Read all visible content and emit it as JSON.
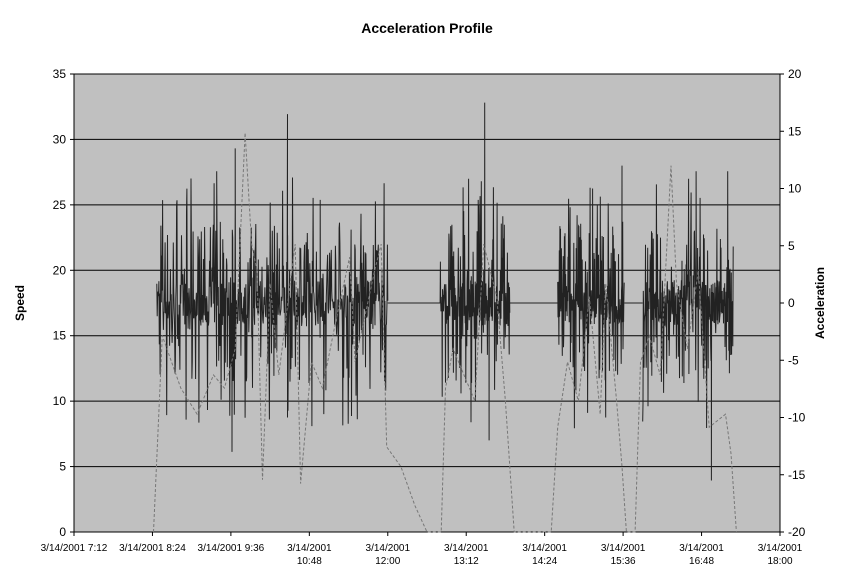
{
  "chart_data": {
    "type": "line",
    "title": "Acceleration Profile",
    "y_left_label": "Speed",
    "y_right_label": "Acceleration",
    "y_left_lim": [
      0,
      35
    ],
    "y_left_ticks": [
      "0",
      "5",
      "10",
      "15",
      "20",
      "25",
      "30",
      "35"
    ],
    "y_right_lim": [
      -20,
      20
    ],
    "y_right_ticks": [
      "-20",
      "-15",
      "-10",
      "-5",
      "0",
      "5",
      "10",
      "15",
      "20"
    ],
    "x_ticks": [
      [
        "3/14/2001 7:12"
      ],
      [
        "3/14/2001 8:24"
      ],
      [
        "3/14/2001 9:36"
      ],
      [
        "3/14/2001",
        "10:48"
      ],
      [
        "3/14/2001",
        "12:00"
      ],
      [
        "3/14/2001",
        "13:12"
      ],
      [
        "3/14/2001",
        "14:24"
      ],
      [
        "3/14/2001",
        "15:36"
      ],
      [
        "3/14/2001",
        "16:48"
      ],
      [
        "3/14/2001",
        "18:00"
      ]
    ],
    "x_range": [
      "3/14/2001 7:12",
      "3/14/2001 18:00"
    ],
    "grid": true,
    "plot_background": "#c0c0c0",
    "series": [
      {
        "axis": "right",
        "style": "solid",
        "color": "#222222",
        "segments": [
          {
            "start": "8:28",
            "end": "12:00",
            "n": 560,
            "spikes": [
              [
                "9:23",
                11.5
              ],
              [
                "9:40",
                13.5
              ],
              [
                "10:28",
                16.5
              ],
              [
                "10:58",
                9
              ],
              [
                "10:28",
                -10
              ]
            ],
            "min_spike": [
              "9:37",
              -13
            ]
          },
          {
            "start": "12:48",
            "end": "13:52",
            "n": 230,
            "spikes": [
              [
                "13:29",
                17.5
              ],
              [
                "13:23",
                9
              ]
            ],
            "min_spike": [
              "13:33",
              -12
            ]
          },
          {
            "start": "14:36",
            "end": "15:37",
            "n": 220,
            "spikes": [
              [
                "15:08",
                10
              ],
              [
                "15:35",
                12
              ]
            ],
            "min_spike": [
              "15:20",
              -10
            ]
          },
          {
            "start": "15:54",
            "end": "17:17",
            "n": 290,
            "spikes": [
              [
                "16:43",
                11.5
              ],
              [
                "17:12",
                11.5
              ]
            ],
            "min_spike": [
              "16:57",
              -15.5
            ]
          }
        ],
        "baseline": 0
      },
      {
        "axis": "left",
        "style": "dashed",
        "color": "#777777",
        "points": [
          [
            "8:25",
            0
          ],
          [
            "8:33",
            15
          ],
          [
            "8:50",
            11
          ],
          [
            "9:05",
            9
          ],
          [
            "9:20",
            12
          ],
          [
            "9:30",
            11
          ],
          [
            "9:40",
            14
          ],
          [
            "9:49",
            30.5
          ],
          [
            "9:55",
            22
          ],
          [
            "10:00",
            20
          ],
          [
            "10:05",
            4
          ],
          [
            "10:12",
            19
          ],
          [
            "10:20",
            12
          ],
          [
            "10:35",
            22
          ],
          [
            "10:40",
            3.7
          ],
          [
            "10:50",
            13
          ],
          [
            "11:00",
            11
          ],
          [
            "11:12",
            16
          ],
          [
            "11:25",
            21
          ],
          [
            "11:30",
            13
          ],
          [
            "11:48",
            20
          ],
          [
            "11:54",
            22
          ],
          [
            "11:59",
            6.5
          ],
          [
            "12:12",
            5
          ],
          [
            "12:25",
            2
          ],
          [
            "12:36",
            0
          ],
          [
            "12:49",
            0
          ],
          [
            "12:53",
            11
          ],
          [
            "13:00",
            14
          ],
          [
            "13:10",
            12
          ],
          [
            "13:20",
            10
          ],
          [
            "13:28",
            22
          ],
          [
            "13:40",
            18
          ],
          [
            "13:48",
            10
          ],
          [
            "13:52",
            5
          ],
          [
            "13:56",
            0
          ],
          [
            "14:30",
            0
          ],
          [
            "14:36",
            8
          ],
          [
            "14:45",
            13
          ],
          [
            "14:55",
            10
          ],
          [
            "15:05",
            18
          ],
          [
            "15:15",
            9
          ],
          [
            "15:20",
            19
          ],
          [
            "15:30",
            10
          ],
          [
            "15:35",
            5
          ],
          [
            "15:39",
            0
          ],
          [
            "15:47",
            0
          ],
          [
            "15:52",
            13
          ],
          [
            "16:00",
            15
          ],
          [
            "16:10",
            12
          ],
          [
            "16:20",
            28
          ],
          [
            "16:25",
            19
          ],
          [
            "16:35",
            14
          ],
          [
            "16:45",
            20
          ],
          [
            "16:55",
            8
          ],
          [
            "17:10",
            9
          ],
          [
            "17:15",
            6
          ],
          [
            "17:20",
            0
          ]
        ]
      }
    ]
  }
}
